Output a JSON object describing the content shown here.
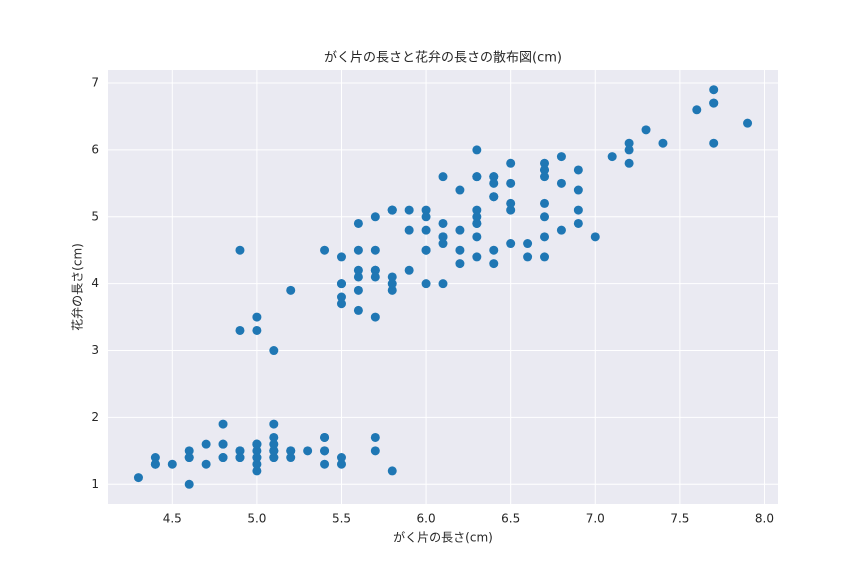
{
  "chart_data": {
    "type": "scatter",
    "title": "がく片の長さと花弁の長さの散布図(cm)",
    "x_label": "がく片の長さ(cm)",
    "y_label": "花弁の長さ(cm)",
    "color": "#1f77b4",
    "grid": true,
    "xlim": [
      4.12,
      8.08
    ],
    "ylim": [
      0.705,
      7.195
    ],
    "xticks": [
      4.5,
      {
        "value": 5,
        "label": "5.0"
      },
      5.5,
      {
        "value": 6,
        "label": "6.0"
      },
      6.5,
      {
        "value": 7,
        "label": "7.0"
      },
      7.5,
      {
        "value": 8,
        "label": "8.0"
      }
    ],
    "yticks": [
      1,
      2,
      3,
      4,
      5,
      6,
      7
    ],
    "x": [
      5.1,
      4.9,
      4.7,
      4.6,
      5.0,
      5.4,
      4.6,
      5.0,
      4.4,
      4.9,
      5.4,
      4.8,
      4.8,
      4.3,
      5.8,
      5.7,
      5.4,
      5.1,
      5.7,
      5.1,
      5.4,
      5.1,
      4.6,
      5.1,
      4.8,
      5.0,
      5.0,
      5.2,
      5.2,
      4.7,
      4.8,
      5.4,
      5.2,
      5.5,
      4.9,
      5.0,
      5.5,
      4.9,
      4.4,
      5.1,
      5.0,
      4.5,
      4.4,
      5.0,
      5.1,
      4.8,
      5.1,
      4.6,
      5.3,
      5.0,
      7.0,
      6.4,
      6.9,
      5.5,
      6.5,
      5.7,
      6.3,
      4.9,
      6.6,
      5.2,
      5.0,
      5.9,
      6.0,
      6.1,
      5.6,
      6.7,
      5.6,
      5.8,
      6.2,
      5.6,
      5.9,
      6.1,
      6.3,
      6.1,
      6.4,
      6.6,
      6.8,
      6.7,
      6.0,
      5.7,
      5.5,
      5.5,
      5.8,
      6.0,
      5.4,
      6.0,
      6.7,
      6.3,
      5.6,
      5.5,
      5.5,
      6.1,
      5.8,
      5.0,
      5.6,
      5.7,
      5.7,
      6.2,
      5.1,
      5.7,
      6.3,
      5.8,
      7.1,
      6.3,
      6.5,
      7.6,
      4.9,
      7.3,
      6.7,
      7.2,
      6.5,
      6.4,
      6.8,
      5.7,
      5.8,
      6.4,
      6.5,
      7.7,
      7.7,
      6.0,
      6.9,
      5.6,
      7.7,
      6.3,
      6.7,
      7.2,
      6.2,
      6.1,
      6.4,
      7.2,
      7.4,
      7.9,
      6.4,
      6.3,
      6.1,
      7.7,
      6.3,
      6.4,
      6.0,
      6.9,
      6.7,
      6.9,
      5.8,
      6.8,
      6.7,
      6.7,
      6.3,
      6.5,
      6.2,
      5.9
    ],
    "y": [
      1.4,
      1.4,
      1.3,
      1.5,
      1.4,
      1.7,
      1.4,
      1.5,
      1.4,
      1.5,
      1.5,
      1.6,
      1.4,
      1.1,
      1.2,
      1.5,
      1.3,
      1.4,
      1.7,
      1.5,
      1.7,
      1.5,
      1.0,
      1.7,
      1.9,
      1.6,
      1.6,
      1.5,
      1.4,
      1.6,
      1.6,
      1.5,
      1.5,
      1.4,
      1.5,
      1.2,
      1.3,
      1.4,
      1.3,
      1.5,
      1.3,
      1.3,
      1.3,
      1.6,
      1.9,
      1.4,
      1.6,
      1.4,
      1.5,
      1.4,
      4.7,
      4.5,
      4.9,
      4.0,
      4.6,
      4.5,
      4.7,
      3.3,
      4.6,
      3.9,
      3.5,
      4.2,
      4.0,
      4.7,
      3.6,
      4.4,
      4.5,
      4.1,
      4.5,
      3.9,
      4.8,
      4.0,
      4.9,
      4.7,
      4.3,
      4.4,
      4.8,
      5.0,
      4.5,
      3.5,
      3.8,
      3.7,
      3.9,
      5.1,
      4.5,
      4.5,
      4.7,
      4.4,
      4.1,
      4.0,
      4.4,
      4.6,
      4.0,
      3.3,
      4.2,
      4.2,
      4.2,
      4.3,
      3.0,
      4.1,
      6.0,
      5.1,
      5.9,
      5.6,
      5.8,
      6.6,
      4.5,
      6.3,
      5.8,
      6.1,
      5.1,
      5.3,
      5.5,
      5.0,
      5.1,
      5.3,
      5.5,
      6.7,
      6.9,
      5.0,
      5.7,
      4.9,
      6.7,
      4.9,
      5.7,
      6.0,
      4.8,
      4.9,
      5.6,
      5.8,
      6.1,
      6.4,
      5.6,
      5.1,
      5.6,
      6.1,
      5.6,
      5.5,
      4.8,
      5.4,
      5.6,
      5.1,
      5.1,
      5.9,
      5.7,
      5.2,
      5.0,
      5.2,
      5.4,
      5.1
    ]
  }
}
